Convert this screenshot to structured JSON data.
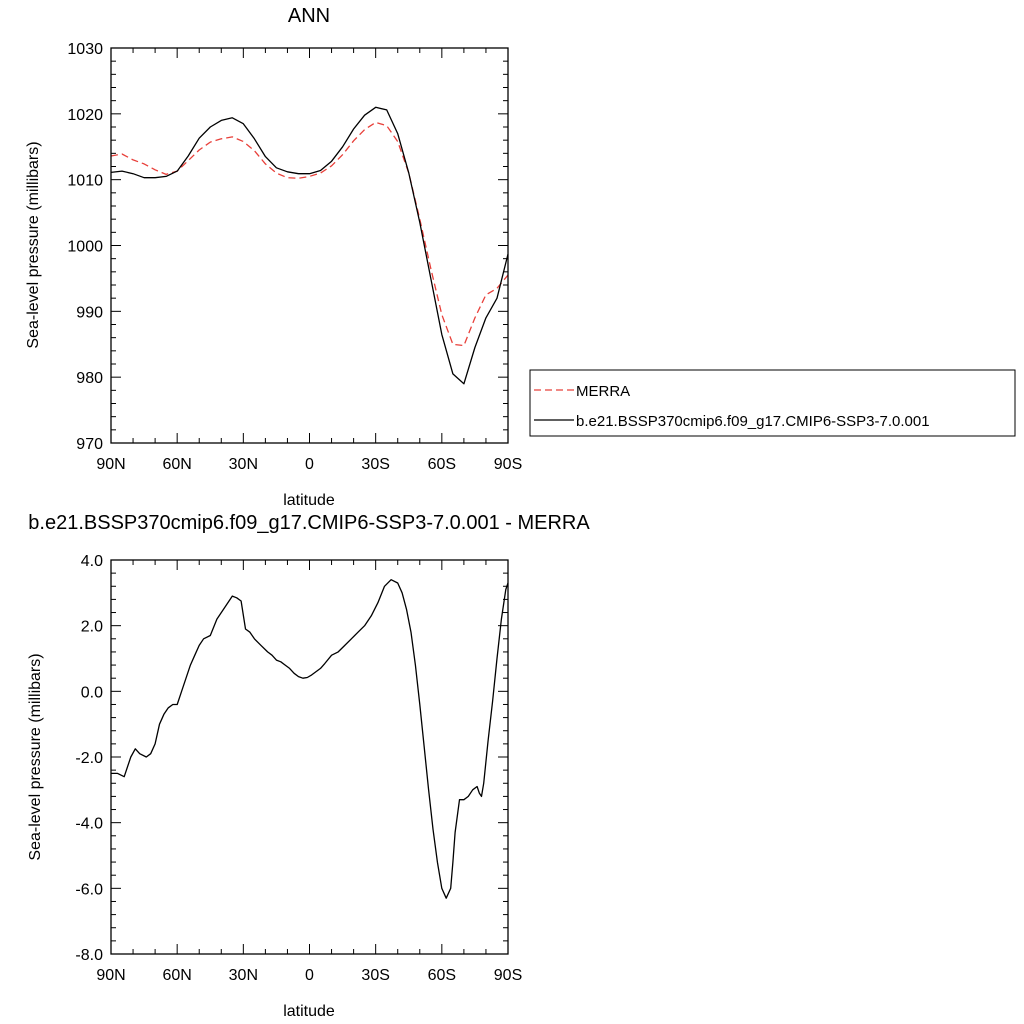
{
  "colors": {
    "merra": "#e8403a",
    "model": "#000000",
    "axis": "#000000"
  },
  "chart_data": [
    {
      "type": "line",
      "title": "ANN",
      "xlabel": "latitude",
      "ylabel": "Sea-level pressure (millibars)",
      "xlim": [
        90,
        -90
      ],
      "ylim": [
        970,
        1030
      ],
      "x_ticks": [
        90,
        60,
        30,
        0,
        -30,
        -60,
        -90
      ],
      "x_tick_labels": [
        "90N",
        "60N",
        "30N",
        "0",
        "30S",
        "60S",
        "90S"
      ],
      "y_ticks": [
        970,
        980,
        990,
        1000,
        1010,
        1020,
        1030
      ],
      "y_tick_labels": [
        "970",
        "980",
        "990",
        "1000",
        "1010",
        "1020",
        "1030"
      ],
      "legend": {
        "placement": "right"
      },
      "series": [
        {
          "name": "MERRA",
          "style": "dashed",
          "x": [
            90,
            85,
            80,
            75,
            70,
            65,
            60,
            55,
            50,
            45,
            40,
            35,
            30,
            25,
            20,
            15,
            10,
            5,
            0,
            -5,
            -10,
            -15,
            -20,
            -25,
            -30,
            -35,
            -40,
            -45,
            -50,
            -55,
            -60,
            -65,
            -70,
            -75,
            -80,
            -85,
            -90
          ],
          "y": [
            1013.6,
            1013.9,
            1013.0,
            1012.4,
            1011.5,
            1010.8,
            1011.3,
            1012.9,
            1014.5,
            1015.7,
            1016.2,
            1016.5,
            1015.8,
            1014.4,
            1012.4,
            1011.0,
            1010.3,
            1010.2,
            1010.5,
            1011.0,
            1012.1,
            1013.8,
            1015.9,
            1017.6,
            1018.7,
            1018.2,
            1015.8,
            1011.0,
            1004.0,
            996.5,
            989.5,
            985.0,
            984.8,
            989.0,
            992.5,
            993.5,
            995.5
          ]
        },
        {
          "name": "b.e21.BSSP370cmip6.f09_g17.CMIP6-SSP3-7.0.001",
          "style": "solid",
          "x": [
            90,
            85,
            80,
            75,
            70,
            65,
            60,
            55,
            50,
            45,
            40,
            35,
            30,
            25,
            20,
            15,
            10,
            5,
            0,
            -5,
            -10,
            -15,
            -20,
            -25,
            -30,
            -35,
            -40,
            -45,
            -50,
            -55,
            -60,
            -65,
            -70,
            -75,
            -80,
            -85,
            -90
          ],
          "y": [
            1011.1,
            1011.3,
            1010.9,
            1010.3,
            1010.3,
            1010.5,
            1011.3,
            1013.6,
            1016.3,
            1018.0,
            1019.0,
            1019.4,
            1018.5,
            1016.2,
            1013.5,
            1011.8,
            1011.2,
            1010.9,
            1010.9,
            1011.4,
            1012.8,
            1015.0,
            1017.7,
            1019.8,
            1021.0,
            1020.6,
            1017.0,
            1011.0,
            1003.5,
            995.0,
            986.5,
            980.5,
            979.0,
            984.5,
            989.0,
            992.0,
            998.7
          ]
        }
      ]
    },
    {
      "type": "line",
      "title": "b.e21.BSSP370cmip6.f09_g17.CMIP6-SSP3-7.0.001 - MERRA",
      "xlabel": "latitude",
      "ylabel": "Sea-level pressure (millibars)",
      "xlim": [
        90,
        -90
      ],
      "ylim": [
        -8,
        4
      ],
      "x_ticks": [
        90,
        60,
        30,
        0,
        -30,
        -60,
        -90
      ],
      "x_tick_labels": [
        "90N",
        "60N",
        "30N",
        "0",
        "30S",
        "60S",
        "90S"
      ],
      "y_ticks": [
        -8,
        -6,
        -4,
        -2,
        0,
        2,
        4
      ],
      "y_tick_labels": [
        "-8.0",
        "-6.0",
        "-4.0",
        "-2.0",
        "0.0",
        "2.0",
        "4.0"
      ],
      "series": [
        {
          "style": "solid",
          "x": [
            90,
            87,
            84,
            81,
            79,
            77,
            74,
            72,
            70,
            68,
            66,
            64,
            62,
            60,
            58,
            56,
            54,
            52,
            50,
            48,
            45,
            42,
            38,
            35,
            33,
            31,
            29,
            27,
            25,
            22,
            19,
            17,
            15,
            13,
            11,
            9,
            7,
            5,
            3,
            1,
            -1,
            -3,
            -5,
            -7,
            -10,
            -13,
            -16,
            -19,
            -22,
            -25,
            -28,
            -31,
            -34,
            -37,
            -40,
            -42,
            -44,
            -46,
            -48,
            -50,
            -52,
            -54,
            -56,
            -58,
            -60,
            -62,
            -64,
            -65,
            -66,
            -68,
            -70,
            -72,
            -74,
            -76,
            -77,
            -78,
            -79,
            -81,
            -83,
            -85,
            -87,
            -89,
            -90
          ],
          "y": [
            -2.5,
            -2.5,
            -2.6,
            -2.0,
            -1.75,
            -1.9,
            -2.0,
            -1.9,
            -1.6,
            -1.0,
            -0.7,
            -0.5,
            -0.4,
            -0.4,
            0.0,
            0.4,
            0.8,
            1.1,
            1.4,
            1.6,
            1.7,
            2.2,
            2.6,
            2.9,
            2.85,
            2.75,
            1.9,
            1.8,
            1.6,
            1.4,
            1.2,
            1.1,
            0.95,
            0.9,
            0.8,
            0.7,
            0.55,
            0.45,
            0.4,
            0.42,
            0.5,
            0.6,
            0.7,
            0.85,
            1.1,
            1.2,
            1.4,
            1.6,
            1.8,
            2.0,
            2.3,
            2.7,
            3.2,
            3.4,
            3.3,
            3.0,
            2.5,
            1.8,
            0.8,
            -0.4,
            -1.7,
            -3.0,
            -4.2,
            -5.2,
            -6.0,
            -6.3,
            -6.0,
            -5.2,
            -4.3,
            -3.3,
            -3.3,
            -3.2,
            -3.0,
            -2.9,
            -3.1,
            -3.2,
            -2.8,
            -1.5,
            -0.3,
            1.0,
            2.2,
            3.1,
            3.3
          ]
        }
      ]
    }
  ]
}
